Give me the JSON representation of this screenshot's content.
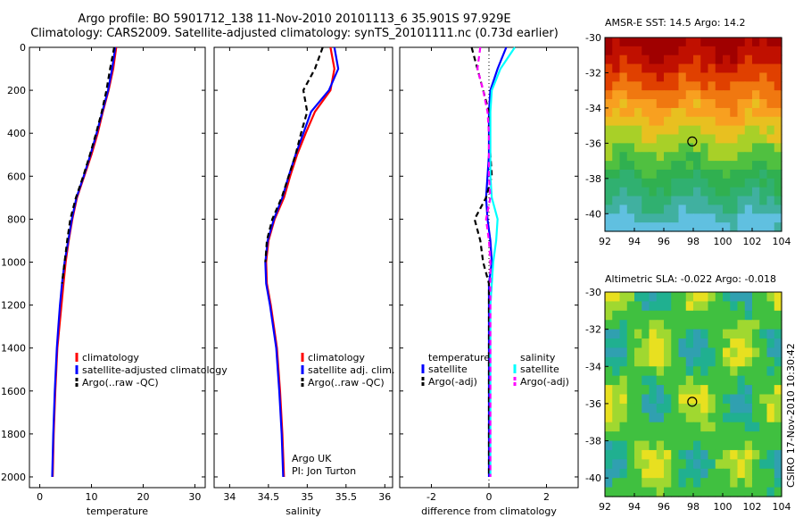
{
  "header": {
    "title_line1": "Argo profile: BO 5901712_138 11-Nov-2010 20101113_6 35.901S 97.929E",
    "title_line2": "Climatology: CARS2009. Satellite-adjusted climatology: synTS_20101111.nc (0.73d earlier)"
  },
  "side_credit": "CSIRO 17-Nov-2010 10:30:42",
  "chart_data": [
    {
      "id": "temperature",
      "type": "line",
      "xlabel": "temperature",
      "ylabel": "",
      "xlim": [
        -2,
        32
      ],
      "ylim": [
        2050,
        0
      ],
      "xticks": [
        0,
        10,
        20,
        30
      ],
      "yticks": [
        0,
        200,
        400,
        600,
        800,
        1000,
        1200,
        1400,
        1600,
        1800,
        2000
      ],
      "legend": [
        "climatology",
        "satellite-adjusted climatology",
        "Argo(..raw -QC)"
      ],
      "legend_position": "lower-right",
      "series": [
        {
          "name": "climatology",
          "color": "#ff0000",
          "dash": "solid",
          "x": [
            14.8,
            14.2,
            13.3,
            12.2,
            11.2,
            10.0,
            8.6,
            7.2,
            6.3,
            5.6,
            5.0,
            4.6,
            4.2,
            3.8,
            3.4,
            3.0,
            2.7,
            2.5
          ],
          "y": [
            0,
            100,
            200,
            300,
            400,
            500,
            600,
            700,
            800,
            900,
            1000,
            1100,
            1200,
            1300,
            1400,
            1600,
            1800,
            2000
          ]
        },
        {
          "name": "satellite-adjusted climatology",
          "color": "#0000ff",
          "dash": "solid",
          "x": [
            14.6,
            14.0,
            13.2,
            12.1,
            11.0,
            9.8,
            8.5,
            7.1,
            6.2,
            5.5,
            4.8,
            4.3,
            3.9,
            3.6,
            3.3,
            2.9,
            2.6,
            2.4
          ],
          "y": [
            0,
            100,
            200,
            300,
            400,
            500,
            600,
            700,
            800,
            900,
            1000,
            1100,
            1200,
            1300,
            1400,
            1600,
            1800,
            2000
          ]
        },
        {
          "name": "Argo(..raw -QC)",
          "color": "#000000",
          "dash": "dash",
          "x": [
            14.4,
            13.6,
            12.9,
            12.0,
            10.9,
            9.7,
            8.4,
            7.0,
            5.9,
            5.3,
            4.8,
            4.3
          ],
          "y": [
            0,
            100,
            200,
            300,
            400,
            500,
            600,
            700,
            800,
            900,
            1000,
            1100
          ]
        }
      ]
    },
    {
      "id": "salinity",
      "type": "line",
      "xlabel": "salinity",
      "ylabel": "",
      "xlim": [
        33.8,
        36.1
      ],
      "ylim": [
        2050,
        0
      ],
      "xticks": [
        34,
        34.5,
        35,
        35.5,
        36
      ],
      "legend": [
        "climatology",
        "satellite adj. clim.",
        "Argo(..raw -QC)"
      ],
      "legend_position": "lower-right",
      "annotation_line1": "Argo UK",
      "annotation_line2": "PI: Jon Turton",
      "series": [
        {
          "name": "climatology",
          "color": "#ff0000",
          "dash": "solid",
          "x": [
            35.3,
            35.35,
            35.3,
            35.1,
            34.98,
            34.87,
            34.78,
            34.7,
            34.58,
            34.5,
            34.47,
            34.48,
            34.53,
            34.57,
            34.61,
            34.65,
            34.68,
            34.7
          ],
          "y": [
            0,
            100,
            200,
            300,
            400,
            500,
            600,
            700,
            800,
            900,
            1000,
            1100,
            1200,
            1300,
            1400,
            1600,
            1800,
            2000
          ]
        },
        {
          "name": "satellite adj. clim.",
          "color": "#0000ff",
          "dash": "solid",
          "x": [
            35.35,
            35.4,
            35.28,
            35.05,
            34.95,
            34.85,
            34.76,
            34.68,
            34.57,
            34.49,
            34.46,
            34.47,
            34.52,
            34.56,
            34.6,
            34.64,
            34.67,
            34.69
          ],
          "y": [
            0,
            100,
            200,
            300,
            400,
            500,
            600,
            700,
            800,
            900,
            1000,
            1100,
            1200,
            1300,
            1400,
            1600,
            1800,
            2000
          ]
        },
        {
          "name": "Argo(..raw -QC)",
          "color": "#000000",
          "dash": "dash",
          "x": [
            35.2,
            35.1,
            34.95,
            35.0,
            34.92,
            34.85,
            34.76,
            34.67,
            34.55,
            34.48,
            34.46
          ],
          "y": [
            0,
            100,
            200,
            300,
            400,
            500,
            600,
            700,
            800,
            900,
            1000
          ]
        }
      ]
    },
    {
      "id": "difference",
      "type": "line",
      "xlabel": "difference from climatology",
      "ylabel": "",
      "xlim": [
        -3.1,
        3.1
      ],
      "ylim": [
        2050,
        0
      ],
      "xticks": [
        -2,
        0,
        2
      ],
      "legend_temperature_title": "temperature",
      "legend_salinity_title": "salinity",
      "legend": [
        "satellite",
        "Argo(-adj)",
        "satellite",
        "Argo(-adj)"
      ],
      "legend_position": "lower-center",
      "series": [
        {
          "name": "temperature satellite",
          "color": "#0000ff",
          "dash": "solid",
          "x": [
            0.6,
            0.3,
            0.05,
            0.0,
            0.0,
            0.0,
            -0.05,
            -0.1,
            -0.05,
            0.05,
            0.1,
            0.0,
            0.0,
            0.0,
            0.0,
            0.0,
            0.0,
            0.0
          ],
          "y": [
            0,
            100,
            200,
            300,
            400,
            500,
            600,
            700,
            800,
            900,
            1000,
            1100,
            1200,
            1300,
            1400,
            1600,
            1800,
            2000
          ]
        },
        {
          "name": "temperature Argo(-adj)",
          "color": "#000000",
          "dash": "dash",
          "x": [
            -0.6,
            -0.4,
            -0.2,
            0.0,
            0.0,
            0.05,
            0.1,
            -0.1,
            -0.5,
            -0.3,
            -0.2,
            0.0,
            0.0,
            0.0,
            0.0,
            0.0,
            0.0,
            0.0
          ],
          "y": [
            0,
            100,
            200,
            300,
            400,
            500,
            600,
            700,
            800,
            900,
            1000,
            1100,
            1200,
            1300,
            1400,
            1600,
            1800,
            2000
          ]
        },
        {
          "name": "salinity satellite",
          "color": "#00ffff",
          "dash": "solid",
          "x": [
            0.9,
            0.4,
            0.1,
            0.05,
            0.05,
            0.05,
            0.05,
            0.1,
            0.3,
            0.25,
            0.15,
            0.1,
            0.05,
            0.05,
            0.05,
            0.05,
            0.05,
            0.05
          ],
          "y": [
            0,
            100,
            200,
            300,
            400,
            500,
            600,
            700,
            800,
            900,
            1000,
            1100,
            1200,
            1300,
            1400,
            1600,
            1800,
            2000
          ]
        },
        {
          "name": "salinity Argo(-adj)",
          "color": "#ff00ff",
          "dash": "dash",
          "x": [
            -0.3,
            -0.4,
            -0.2,
            -0.05,
            0.0,
            0.0,
            0.0,
            0.05,
            -0.1,
            0.0,
            0.05,
            0.05,
            0.05,
            0.05,
            0.05,
            0.05,
            0.05,
            0.05
          ],
          "y": [
            0,
            100,
            200,
            300,
            400,
            500,
            600,
            700,
            800,
            900,
            1000,
            1100,
            1200,
            1300,
            1400,
            1600,
            1800,
            2000
          ]
        }
      ]
    },
    {
      "id": "sst_map",
      "type": "heatmap",
      "title": "AMSR-E SST: 14.5 Argo: 14.2",
      "xlim": [
        92,
        104
      ],
      "ylim": [
        -41,
        -30
      ],
      "xticks": [
        92,
        94,
        96,
        98,
        100,
        102,
        104
      ],
      "yticks": [
        -30,
        -32,
        -34,
        -36,
        -38,
        -40
      ],
      "marker_position": [
        97.929,
        -35.901
      ],
      "colors_north_to_south": [
        "#a00000",
        "#c01000",
        "#e04000",
        "#f07810",
        "#f8a020",
        "#e8c020",
        "#a8d028",
        "#50c040",
        "#30b050",
        "#30b070",
        "#40b0a0",
        "#60c0e0"
      ]
    },
    {
      "id": "sla_map",
      "type": "heatmap",
      "title": "Altimetric SLA: -0.022 Argo: -0.018",
      "xlim": [
        92,
        104
      ],
      "ylim": [
        -41,
        -30
      ],
      "xticks": [
        92,
        94,
        96,
        98,
        100,
        102,
        104
      ],
      "yticks": [
        -30,
        -32,
        -34,
        -36,
        -38,
        -40
      ],
      "marker_position": [
        97.929,
        -35.901
      ],
      "base_color": "#40c040",
      "patch_colors": [
        "#e8e020",
        "#a0d830",
        "#20b090",
        "#30a0b0"
      ]
    }
  ]
}
